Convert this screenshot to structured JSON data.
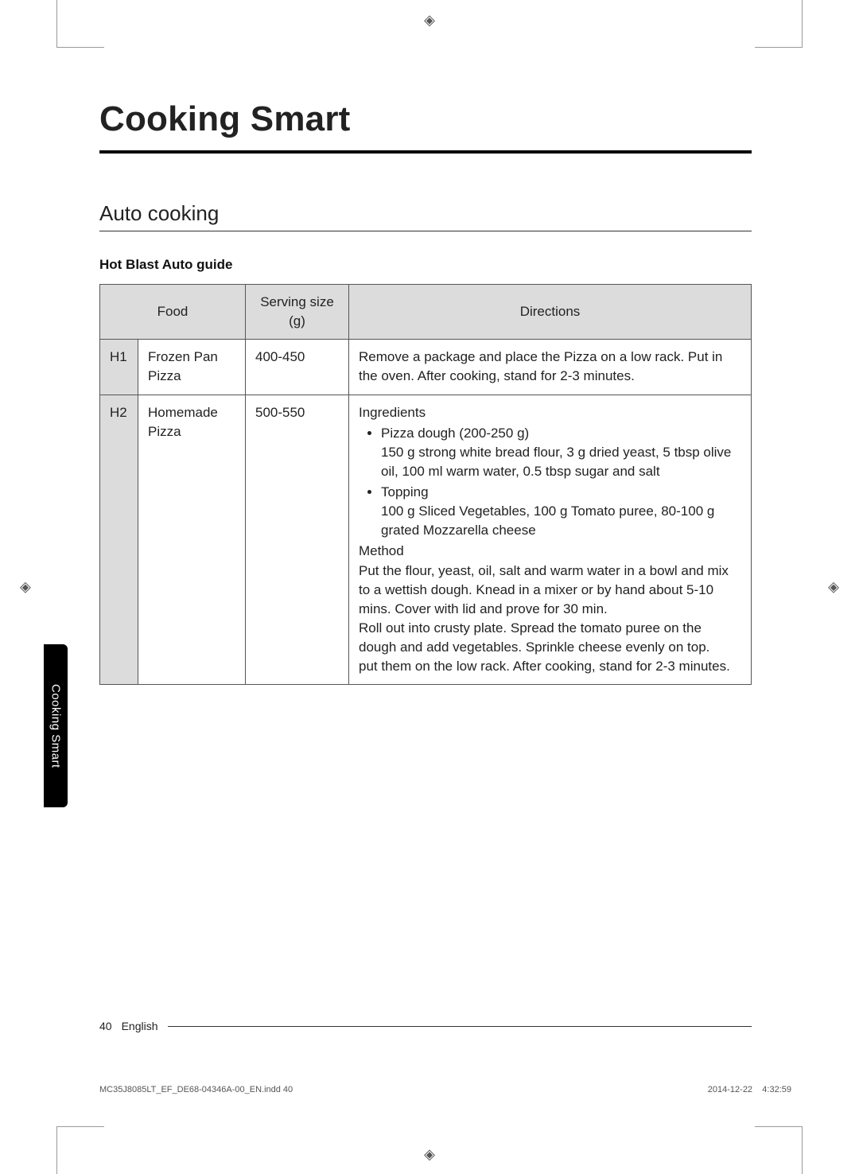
{
  "document": {
    "title": "Cooking Smart",
    "section": "Auto cooking",
    "guide_title": "Hot Blast Auto guide",
    "side_tab": "Cooking Smart",
    "page_number": "40",
    "language": "English",
    "print_file": "MC35J8085LT_EF_DE68-04346A-00_EN.indd   40",
    "print_date": "2014-12-22",
    "print_time": "4:32:59"
  },
  "table": {
    "headers": {
      "food": "Food",
      "serving": "Serving size (g)",
      "directions": "Directions"
    },
    "rows": [
      {
        "code": "H1",
        "food": "Frozen Pan Pizza",
        "serving": "400-450",
        "directions_plain": "Remove a package and place the Pizza on a low rack. Put in the oven. After cooking, stand for 2-3 minutes."
      },
      {
        "code": "H2",
        "food": "Homemade Pizza",
        "serving": "500-550",
        "ingredients_label": "Ingredients",
        "ingredients": [
          {
            "head": "Pizza dough (200-250 g)",
            "body": "150 g strong white bread flour, 3 g dried yeast, 5 tbsp olive oil, 100 ml warm water, 0.5 tbsp sugar and salt"
          },
          {
            "head": "Topping",
            "body": "100 g Sliced Vegetables, 100 g Tomato puree, 80-100 g grated Mozzarella cheese"
          }
        ],
        "method_label": "Method",
        "method_text": "Put the flour, yeast, oil, salt and warm water in a bowl and mix to a wettish dough. Knead in a mixer or by hand about 5-10 mins. Cover with lid and prove for 30 min.\nRoll out into crusty plate. Spread the tomato puree on the dough and add vegetables. Sprinkle cheese evenly on top.\nput them on the low rack. After cooking, stand for 2-3 minutes."
      }
    ]
  },
  "colors": {
    "header_bg": "#dcdcdc",
    "border": "#555555",
    "text": "#222222",
    "tab_bg": "#000000",
    "tab_text": "#ffffff"
  }
}
